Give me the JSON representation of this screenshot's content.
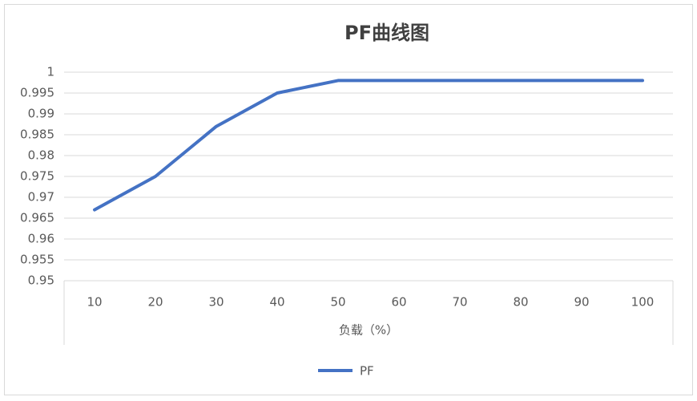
{
  "chart_data": {
    "type": "line",
    "title": "PF曲线图",
    "x_label": "负载（%）",
    "categories": [
      "10",
      "20",
      "30",
      "40",
      "50",
      "60",
      "70",
      "80",
      "90",
      "100"
    ],
    "series": [
      {
        "name": "PF",
        "color": "#4472c4",
        "values": [
          0.967,
          0.975,
          0.987,
          0.995,
          0.998,
          0.998,
          0.998,
          0.998,
          0.998,
          0.998
        ]
      }
    ],
    "ylim": [
      0.95,
      1
    ],
    "yticks": [
      0.95,
      0.955,
      0.96,
      0.965,
      0.97,
      0.975,
      0.98,
      0.985,
      0.99,
      0.995,
      1
    ],
    "grid": true,
    "legend": "bottom"
  }
}
